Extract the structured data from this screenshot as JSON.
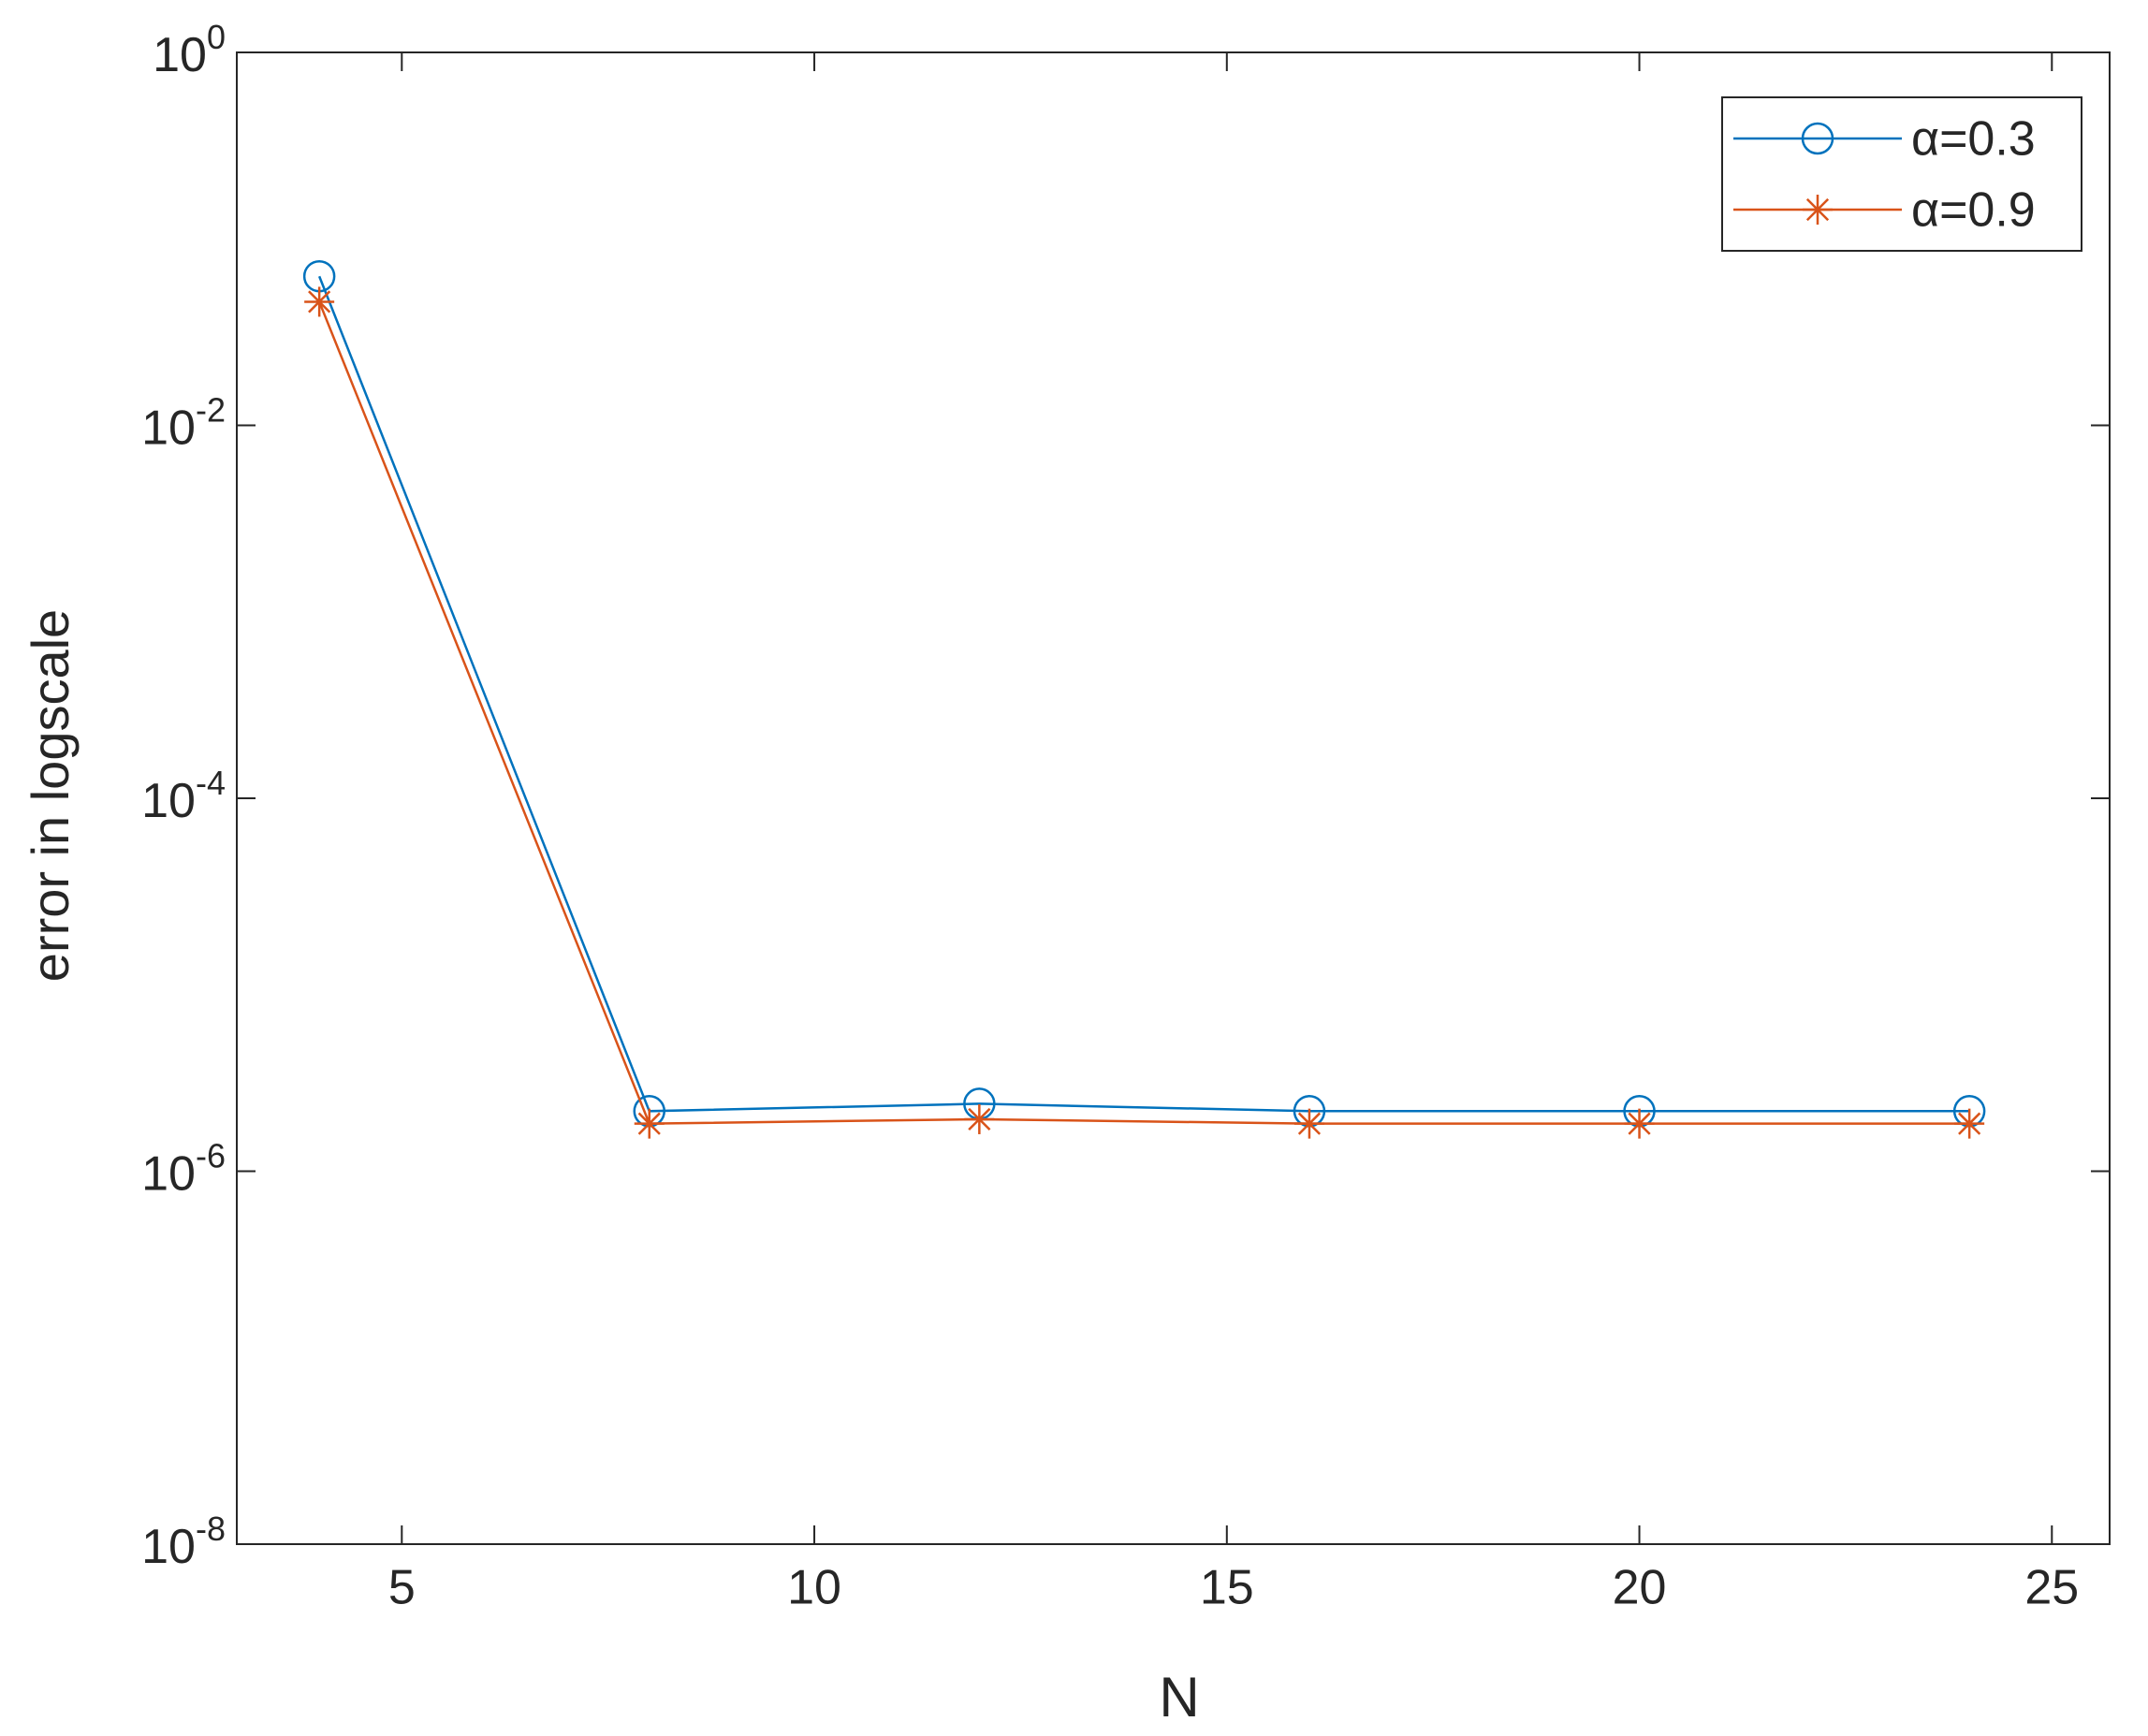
{
  "chart_data": {
    "type": "line",
    "x_label": "N",
    "y_label": "error in logscale",
    "x": [
      4,
      8,
      12,
      16,
      20,
      24
    ],
    "series": [
      {
        "name": "α=0.3",
        "color": "#0072bd",
        "marker": "circle",
        "values": [
          0.063,
          2.1e-06,
          2.3e-06,
          2.1e-06,
          2.1e-06,
          2.1e-06
        ]
      },
      {
        "name": "α=0.9",
        "color": "#d95319",
        "marker": "asterisk",
        "values": [
          0.046,
          1.8e-06,
          1.9e-06,
          1.8e-06,
          1.8e-06,
          1.8e-06
        ]
      }
    ],
    "xlim": [
      3,
      25.7
    ],
    "xticks": [
      5,
      10,
      15,
      20,
      25
    ],
    "ylim": [
      1e-08,
      1
    ],
    "y_scale": "log",
    "yticks": [
      {
        "value": 1e-08,
        "label": "10^-8"
      },
      {
        "value": 1e-06,
        "label": "10^-6"
      },
      {
        "value": 0.0001,
        "label": "10^-4"
      },
      {
        "value": 0.01,
        "label": "10^-2"
      },
      {
        "value": 1,
        "label": "10^0"
      }
    ],
    "legend": "top-right",
    "grid": false
  }
}
